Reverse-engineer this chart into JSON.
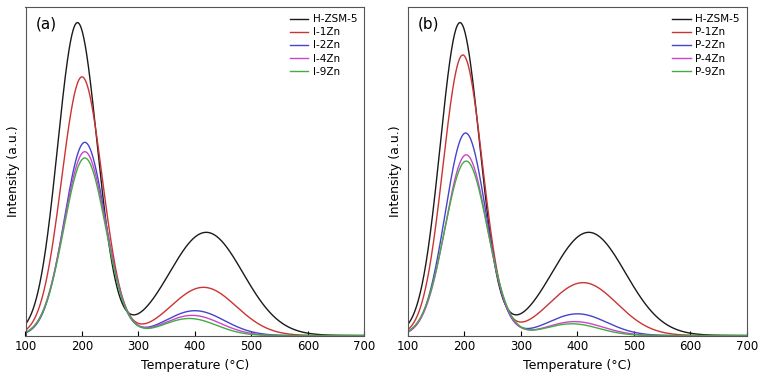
{
  "title_a": "(a)",
  "title_b": "(b)",
  "xlabel": "Temperature (°C)",
  "ylabel": "Intensity (a.u.)",
  "xlim": [
    100,
    700
  ],
  "legend_a": [
    "H-ZSM-5",
    "I-1Zn",
    "I-2Zn",
    "I-4Zn",
    "I-9Zn"
  ],
  "legend_b": [
    "H-ZSM-5",
    "P-1Zn",
    "P-2Zn",
    "P-4Zn",
    "P-9Zn"
  ],
  "colors": {
    "HZSM5": "#1a1a1a",
    "1Zn_a": "#cc3333",
    "2Zn_a": "#4444cc",
    "4Zn_a": "#cc44cc",
    "9Zn_a": "#44aa44",
    "1Zn_b": "#cc3333",
    "2Zn_b": "#4444cc",
    "4Zn_b": "#cc44cc",
    "9Zn_b": "#44aa44"
  },
  "background": "#ffffff",
  "figsize": [
    7.65,
    3.79
  ],
  "dpi": 100
}
